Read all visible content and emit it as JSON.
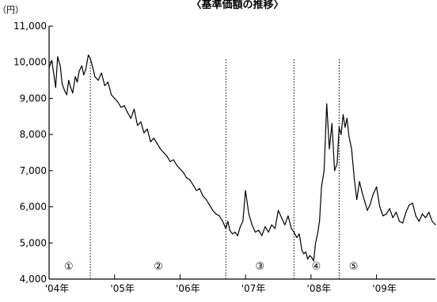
{
  "chart_data": {
    "type": "line",
    "title": "〈基準価額の推移〉",
    "ylabel_unit": "（円）",
    "ylim": [
      4000,
      11000
    ],
    "y_ticks": [
      {
        "value": 11000,
        "label": "11,000"
      },
      {
        "value": 10000,
        "label": "10,000"
      },
      {
        "value": 9000,
        "label": "9,000"
      },
      {
        "value": 8000,
        "label": "8,000"
      },
      {
        "value": 7000,
        "label": "7,000"
      },
      {
        "value": 6000,
        "label": "6,000"
      },
      {
        "value": 5000,
        "label": "5,000"
      },
      {
        "value": 4000,
        "label": "4,000"
      }
    ],
    "xlim": [
      2004.0,
      2009.9
    ],
    "x_ticks": [
      {
        "value": 2004.0,
        "label": "'04年"
      },
      {
        "value": 2005.0,
        "label": "'05年"
      },
      {
        "value": 2006.0,
        "label": "'06年"
      },
      {
        "value": 2007.0,
        "label": "'07年"
      },
      {
        "value": 2008.0,
        "label": "'08年"
      },
      {
        "value": 2009.0,
        "label": "'09年"
      }
    ],
    "period_dividers": [
      2004.63,
      2006.7,
      2007.74,
      2008.43
    ],
    "period_labels": [
      {
        "label": "①",
        "x": 2004.3
      },
      {
        "label": "②",
        "x": 2005.67
      },
      {
        "label": "③",
        "x": 2007.22
      },
      {
        "label": "④",
        "x": 2008.08
      },
      {
        "label": "⑤",
        "x": 2008.65
      }
    ],
    "series": [
      {
        "color": "#000000",
        "x": [
          2004.0,
          2004.04,
          2004.07,
          2004.1,
          2004.13,
          2004.17,
          2004.2,
          2004.24,
          2004.27,
          2004.3,
          2004.33,
          2004.36,
          2004.4,
          2004.43,
          2004.46,
          2004.5,
          2004.53,
          2004.56,
          2004.6,
          2004.63,
          2004.66,
          2004.7,
          2004.75,
          2004.8,
          2004.85,
          2004.9,
          2004.95,
          2005.0,
          2005.05,
          2005.1,
          2005.15,
          2005.2,
          2005.25,
          2005.3,
          2005.35,
          2005.4,
          2005.45,
          2005.5,
          2005.55,
          2005.6,
          2005.65,
          2005.7,
          2005.75,
          2005.8,
          2005.85,
          2005.9,
          2005.95,
          2006.0,
          2006.05,
          2006.1,
          2006.15,
          2006.2,
          2006.25,
          2006.3,
          2006.35,
          2006.4,
          2006.45,
          2006.5,
          2006.55,
          2006.6,
          2006.65,
          2006.7,
          2006.73,
          2006.76,
          2006.8,
          2006.84,
          2006.88,
          2006.92,
          2006.96,
          2007.0,
          2007.05,
          2007.1,
          2007.15,
          2007.2,
          2007.25,
          2007.3,
          2007.35,
          2007.4,
          2007.45,
          2007.5,
          2007.55,
          2007.6,
          2007.65,
          2007.7,
          2007.74,
          2007.78,
          2007.82,
          2007.86,
          2007.89,
          2007.92,
          2007.95,
          2007.98,
          2008.01,
          2008.04,
          2008.07,
          2008.1,
          2008.13,
          2008.16,
          2008.2,
          2008.24,
          2008.28,
          2008.32,
          2008.36,
          2008.4,
          2008.43,
          2008.46,
          2008.49,
          2008.52,
          2008.55,
          2008.58,
          2008.62,
          2008.66,
          2008.7,
          2008.74,
          2008.78,
          2008.82,
          2008.86,
          2008.9,
          2008.95,
          2009.0,
          2009.05,
          2009.1,
          2009.15,
          2009.2,
          2009.25,
          2009.3,
          2009.35,
          2009.4,
          2009.45,
          2009.5,
          2009.55,
          2009.6,
          2009.65,
          2009.7,
          2009.75,
          2009.8,
          2009.85,
          2009.9
        ],
        "y": [
          9850,
          10050,
          9700,
          9300,
          10150,
          9900,
          9400,
          9200,
          9100,
          9500,
          9300,
          9150,
          9600,
          9450,
          9750,
          9900,
          9650,
          9800,
          10200,
          10100,
          9900,
          9600,
          9500,
          9700,
          9350,
          9450,
          9100,
          9000,
          8900,
          8750,
          8800,
          8600,
          8450,
          8700,
          8250,
          8350,
          8050,
          8150,
          7800,
          7900,
          7750,
          7600,
          7500,
          7400,
          7250,
          7300,
          7150,
          7050,
          6950,
          6800,
          6750,
          6600,
          6450,
          6500,
          6300,
          6200,
          6050,
          5900,
          5800,
          5750,
          5600,
          5400,
          5600,
          5350,
          5250,
          5300,
          5200,
          5450,
          5600,
          6450,
          5800,
          5500,
          5300,
          5350,
          5200,
          5450,
          5300,
          5500,
          5400,
          5900,
          5700,
          5500,
          5750,
          5400,
          5300,
          5150,
          5250,
          4800,
          4700,
          4750,
          4550,
          4650,
          4600,
          4500,
          5000,
          5250,
          5600,
          6550,
          7000,
          8850,
          7600,
          8300,
          7000,
          7200,
          8200,
          8000,
          8550,
          8200,
          8450,
          7950,
          7600,
          6800,
          6200,
          6700,
          6400,
          6150,
          5900,
          6050,
          6350,
          6550,
          6000,
          5750,
          5800,
          5950,
          5700,
          5850,
          5600,
          5550,
          5850,
          6050,
          6100,
          5750,
          5600,
          5800,
          5700,
          5850,
          5600,
          5500
        ]
      }
    ]
  }
}
